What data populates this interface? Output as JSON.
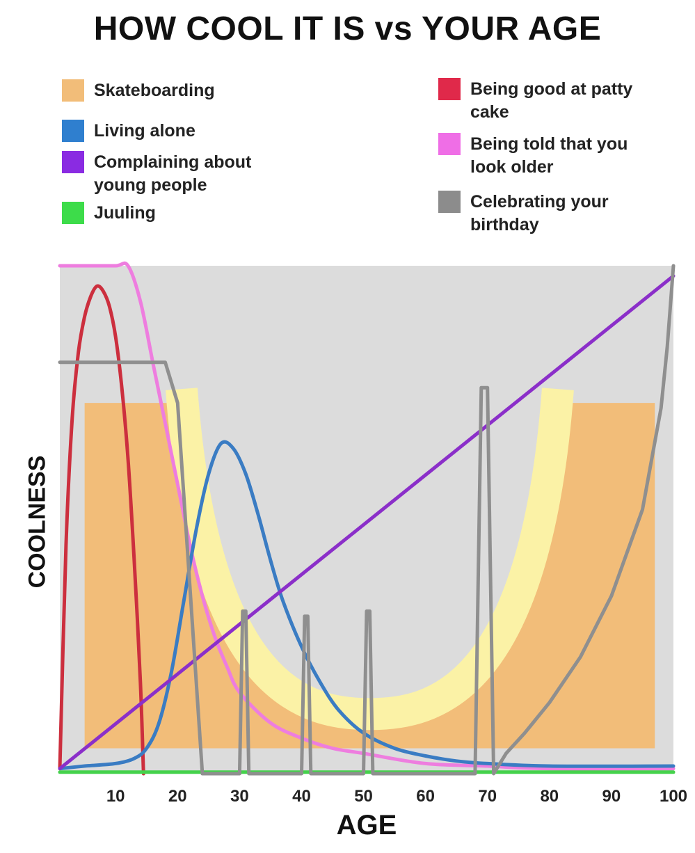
{
  "title": "HOW COOL IT IS vs YOUR AGE",
  "legend": [
    {
      "label": "Skateboarding",
      "color": "#f2bd79",
      "column": "left"
    },
    {
      "label": "Living alone",
      "color": "#2f7fcf",
      "column": "left"
    },
    {
      "label": "Complaining about young people",
      "color": "#8a2be2",
      "column": "left"
    },
    {
      "label": "Juuling",
      "color": "#3ddc4a",
      "column": "left"
    },
    {
      "label": "Being good at patty cake",
      "color": "#e0294a",
      "column": "right"
    },
    {
      "label": "Being told that you look older",
      "color": "#ef6ee6",
      "column": "right"
    },
    {
      "label": "Celebrating your birthday",
      "color": "#8c8c8c",
      "column": "right"
    }
  ],
  "chart_data": {
    "type": "line",
    "title": "HOW COOL IT IS vs YOUR AGE",
    "xlabel": "AGE",
    "ylabel": "COOLNESS",
    "x_ticks": [
      10,
      20,
      30,
      40,
      50,
      60,
      70,
      80,
      90,
      100
    ],
    "xlim": [
      1,
      100
    ],
    "ylim": [
      0,
      100
    ],
    "background": "#dcdcdc",
    "grid": false,
    "skateboarding_band": {
      "name": "Skateboarding",
      "color": "#f2bd79",
      "highlight_color": "#fbf2a6",
      "x_start": 5,
      "x_end": 97,
      "outer_level": 73,
      "inner_bottom_level": 5
    },
    "series": [
      {
        "name": "Being good at patty cake",
        "color": "#cc2f3e",
        "x": [
          1,
          2,
          3,
          4,
          5,
          6,
          7,
          8,
          9,
          10,
          11,
          12,
          13,
          14,
          14.5
        ],
        "y": [
          1,
          45,
          70,
          83,
          90,
          94,
          96,
          95,
          92,
          86,
          76,
          62,
          42,
          18,
          0
        ]
      },
      {
        "name": "Being told that you look older",
        "color": "#ee7ddf",
        "x": [
          1,
          5,
          10,
          12,
          14,
          16,
          18,
          20,
          22,
          24,
          26,
          28,
          30,
          35,
          40,
          45,
          50,
          60,
          70,
          80,
          100
        ],
        "y": [
          100,
          100,
          100,
          100,
          93,
          81,
          69,
          57,
          45,
          35,
          27,
          21,
          16,
          10,
          7,
          5,
          4,
          2,
          1.5,
          1,
          1
        ]
      },
      {
        "name": "Living alone",
        "color": "#3a7cc3",
        "x": [
          1,
          5,
          10,
          13,
          15,
          17,
          19,
          21,
          23,
          25,
          27,
          29,
          31,
          33,
          35,
          37,
          40,
          43,
          46,
          50,
          55,
          60,
          65,
          70,
          80,
          100
        ],
        "y": [
          1,
          1.5,
          2,
          3,
          5,
          10,
          20,
          34,
          48,
          59,
          65,
          64,
          59,
          51,
          42,
          34,
          25,
          18,
          12.5,
          8,
          5,
          3.5,
          2.5,
          2,
          1.5,
          1.5
        ]
      },
      {
        "name": "Complaining about young people",
        "color": "#8b2fc9",
        "x": [
          1,
          100
        ],
        "y": [
          1,
          98
        ]
      },
      {
        "name": "Juuling",
        "color": "#45d24c",
        "x": [
          1,
          100
        ],
        "y": [
          0.3,
          0.3
        ]
      },
      {
        "name": "Celebrating your birthday",
        "color": "#8f8f8f",
        "x": [
          1,
          18,
          20,
          24,
          30,
          30.5,
          31,
          31.5,
          40,
          40.5,
          41,
          41.5,
          50,
          50.5,
          51,
          51.5,
          68,
          69,
          70,
          71,
          73,
          76,
          80,
          85,
          90,
          95,
          98,
          99,
          100
        ],
        "y": [
          81,
          81,
          73,
          0,
          0,
          32,
          32,
          0,
          0,
          31,
          31,
          0,
          0,
          32,
          32,
          0,
          0,
          76,
          76,
          0,
          4,
          8,
          14,
          23,
          35,
          52,
          72,
          84,
          100
        ]
      }
    ]
  }
}
